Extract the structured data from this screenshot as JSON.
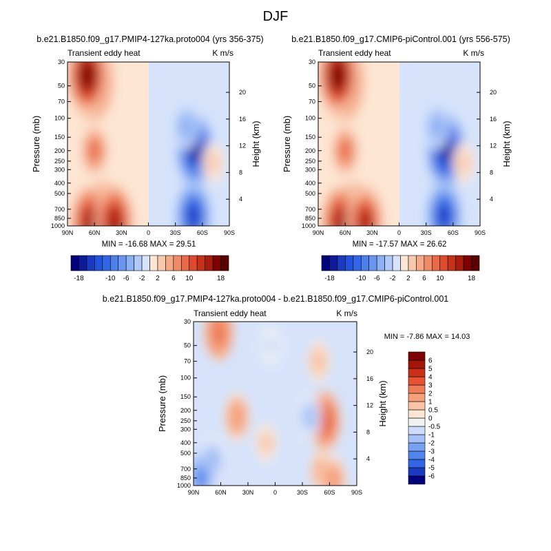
{
  "figure_title": "DJF",
  "chart_data": [
    {
      "type": "heatmap",
      "title": "b.e21.B1850.f09_g17.PMIP4-127ka.proto004 (yrs 356-375)",
      "left_string": "Transient eddy heat",
      "right_string": "K m/s",
      "x": {
        "label": "",
        "range": [
          90,
          -90
        ],
        "ticks": [
          90,
          60,
          30,
          0,
          -30,
          -60,
          -90
        ],
        "tick_labels": [
          "90N",
          "60N",
          "30N",
          "0",
          "30S",
          "60S",
          "90S"
        ]
      },
      "y": {
        "label": "Pressure (mb)",
        "range": [
          1000,
          30
        ],
        "scale": "log",
        "ticks": [
          30,
          50,
          70,
          100,
          150,
          200,
          250,
          300,
          400,
          500,
          700,
          850,
          1000
        ],
        "tick_labels": [
          "30",
          "50",
          "70",
          "100",
          "150",
          "200",
          "250",
          "300",
          "400",
          "500",
          "700",
          "850",
          "1000"
        ]
      },
      "y_right": {
        "label": "Height (km)",
        "ticks": [
          4,
          8,
          12,
          16,
          20
        ],
        "tick_labels": [
          "4",
          "8",
          "12",
          "16",
          "20"
        ]
      },
      "min": -16.68,
      "max": 29.51,
      "min_max_text": "MIN = -16.68   MAX =  29.51",
      "features": [
        {
          "lat": 62,
          "pres": 45,
          "value": 20
        },
        {
          "lat": 68,
          "pres": 40,
          "value": 18
        },
        {
          "lat": 60,
          "pres": 200,
          "value": 10
        },
        {
          "lat": 50,
          "pres": 870,
          "value": 18
        },
        {
          "lat": 65,
          "pres": 920,
          "value": 16
        },
        {
          "lat": 38,
          "pres": 900,
          "value": 16
        },
        {
          "lat": 18,
          "pres": 60,
          "value": 2
        },
        {
          "lat": -52,
          "pres": 200,
          "value": -16
        },
        {
          "lat": -50,
          "pres": 800,
          "value": -14
        },
        {
          "lat": -42,
          "pres": 120,
          "value": -5
        },
        {
          "lat": -72,
          "pres": 260,
          "value": 3
        }
      ]
    },
    {
      "type": "heatmap",
      "title": "b.e21.B1850.f09_g17.CMIP6-piControl.001 (yrs 556-575)",
      "left_string": "Transient eddy heat",
      "right_string": "K m/s",
      "x": {
        "label": "",
        "range": [
          90,
          -90
        ],
        "ticks": [
          90,
          60,
          30,
          0,
          -30,
          -60,
          -90
        ],
        "tick_labels": [
          "90N",
          "60N",
          "30N",
          "0",
          "30S",
          "60S",
          "90S"
        ]
      },
      "y": {
        "label": "Pressure (mb)",
        "range": [
          1000,
          30
        ],
        "scale": "log",
        "ticks": [
          30,
          50,
          70,
          100,
          150,
          200,
          250,
          300,
          400,
          500,
          700,
          850,
          1000
        ],
        "tick_labels": [
          "30",
          "50",
          "70",
          "100",
          "150",
          "200",
          "250",
          "300",
          "400",
          "500",
          "700",
          "850",
          "1000"
        ]
      },
      "y_right": {
        "label": "Height (km)",
        "ticks": [
          4,
          8,
          12,
          16,
          20
        ],
        "tick_labels": [
          "4",
          "8",
          "12",
          "16",
          "20"
        ]
      },
      "min": -17.57,
      "max": 26.62,
      "min_max_text": "MIN = -17.57   MAX =  26.62",
      "features": [
        {
          "lat": 62,
          "pres": 45,
          "value": 20
        },
        {
          "lat": 68,
          "pres": 40,
          "value": 18
        },
        {
          "lat": 60,
          "pres": 200,
          "value": 10
        },
        {
          "lat": 50,
          "pres": 870,
          "value": 17
        },
        {
          "lat": 65,
          "pres": 920,
          "value": 16
        },
        {
          "lat": 38,
          "pres": 900,
          "value": 15
        },
        {
          "lat": 18,
          "pres": 60,
          "value": 2
        },
        {
          "lat": -52,
          "pres": 200,
          "value": -17
        },
        {
          "lat": -50,
          "pres": 800,
          "value": -14
        },
        {
          "lat": -42,
          "pres": 120,
          "value": -5
        },
        {
          "lat": -72,
          "pres": 260,
          "value": 3
        }
      ]
    },
    {
      "type": "heatmap",
      "title": "b.e21.B1850.f09_g17.PMIP4-127ka.proto004 - b.e21.B1850.f09_g17.CMIP6-piControl.001",
      "left_string": "Transient eddy heat",
      "right_string": "K m/s",
      "x": {
        "label": "",
        "range": [
          90,
          -90
        ],
        "ticks": [
          90,
          60,
          30,
          0,
          -30,
          -60,
          -90
        ],
        "tick_labels": [
          "90N",
          "60N",
          "30N",
          "0",
          "30S",
          "60S",
          "90S"
        ]
      },
      "y": {
        "label": "Pressure (mb)",
        "range": [
          1000,
          30
        ],
        "scale": "log",
        "ticks": [
          30,
          50,
          70,
          100,
          150,
          200,
          250,
          300,
          400,
          500,
          700,
          850,
          1000
        ],
        "tick_labels": [
          "30",
          "50",
          "70",
          "100",
          "150",
          "200",
          "250",
          "300",
          "400",
          "500",
          "700",
          "850",
          "1000"
        ]
      },
      "y_right": {
        "label": "Height (km)",
        "ticks": [
          4,
          8,
          12,
          16,
          20
        ],
        "tick_labels": [
          "4",
          "8",
          "12",
          "16",
          "20"
        ]
      },
      "min": -7.86,
      "max": 14.03,
      "min_max_text": "MIN =  -7.86   MAX =  14.03",
      "features": [
        {
          "lat": 62,
          "pres": 38,
          "value": 3
        },
        {
          "lat": 42,
          "pres": 230,
          "value": 2
        },
        {
          "lat": -55,
          "pres": 250,
          "value": 3.5
        },
        {
          "lat": -52,
          "pres": 750,
          "value": 1.5
        },
        {
          "lat": -64,
          "pres": 900,
          "value": 2
        },
        {
          "lat": -48,
          "pres": 70,
          "value": 1
        },
        {
          "lat": 70,
          "pres": 600,
          "value": -2
        },
        {
          "lat": 82,
          "pres": 850,
          "value": -3
        },
        {
          "lat": -38,
          "pres": 230,
          "value": -1.5
        },
        {
          "lat": 5,
          "pres": 50,
          "value": -0.8
        },
        {
          "lat": 10,
          "pres": 400,
          "value": 0.7
        }
      ]
    }
  ],
  "colorbar_top": {
    "levels": [
      -18,
      -16,
      -14,
      -12,
      -10,
      -8,
      -6,
      -4,
      -2,
      0,
      2,
      4,
      6,
      8,
      10,
      12,
      14,
      16,
      18
    ],
    "tick_labels": [
      "-18",
      "-10",
      "-6",
      "-2",
      "2",
      "6",
      "10",
      "18"
    ],
    "colors": [
      "#00007f",
      "#0d1a9c",
      "#1a3ac2",
      "#2352db",
      "#3366e6",
      "#4d80eb",
      "#6a96f0",
      "#8bb0f4",
      "#b0c9f8",
      "#d6e3fb",
      "#fde6d4",
      "#f9c9ae",
      "#f5a987",
      "#f08b68",
      "#e96a48",
      "#dd4a2c",
      "#c93219",
      "#a81c0c",
      "#7f0000",
      "#5a0000"
    ]
  },
  "colorbar_bottom": {
    "levels": [
      -6,
      -5,
      -4,
      -3,
      -2,
      -1,
      -0.5,
      0,
      0.5,
      1,
      2,
      3,
      4,
      5,
      6
    ],
    "tick_labels": [
      "-6",
      "-5",
      "-4",
      "-3",
      "-2",
      "-1",
      "-0.5",
      "0",
      "0.5",
      "1",
      "2",
      "3",
      "4",
      "5",
      "6"
    ],
    "colors": [
      "#00007f",
      "#1a3ac2",
      "#3366e6",
      "#5285ec",
      "#77a2f2",
      "#a5c1f7",
      "#cddcfa",
      "#f2f2f2",
      "#fde6d4",
      "#f9c4a5",
      "#f5a07b",
      "#ee7c56",
      "#e55234",
      "#c93219",
      "#a21608",
      "#7f0000"
    ]
  }
}
